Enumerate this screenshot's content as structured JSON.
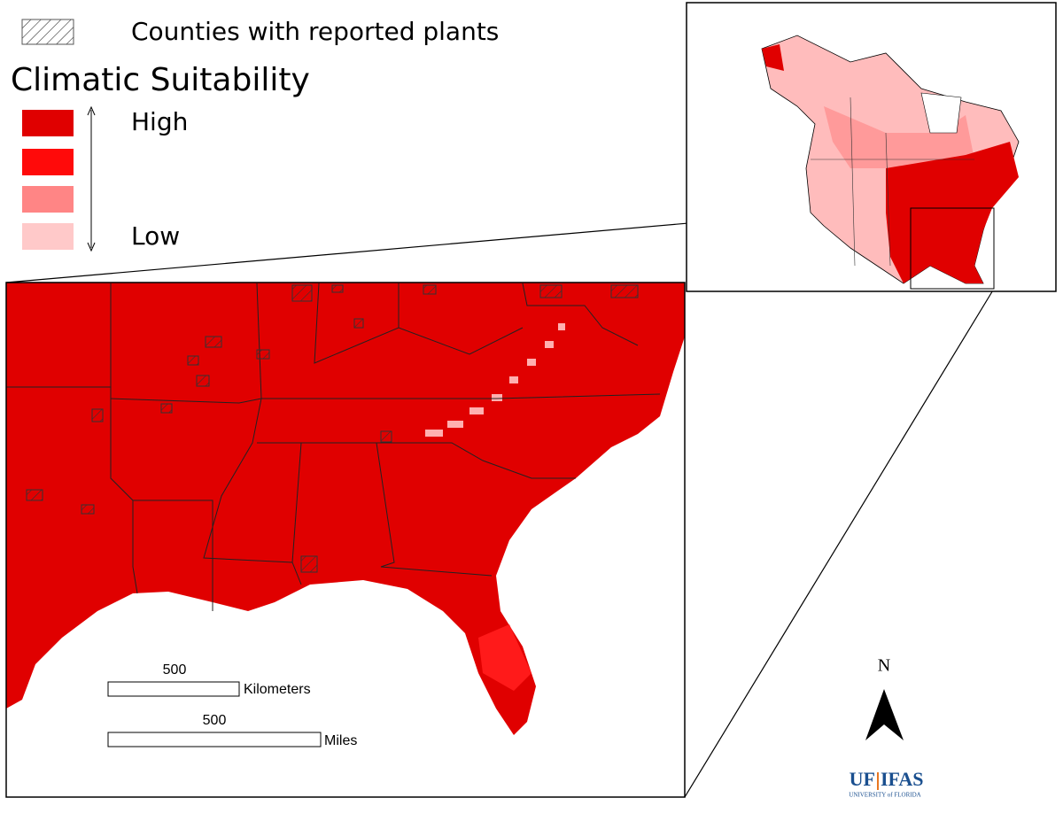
{
  "legend": {
    "hatch_label": "Counties with reported plants",
    "title": "Climatic Suitability",
    "high_label": "High",
    "low_label": "Low"
  },
  "scale_bars": [
    {
      "distance": 500,
      "unit": "Kilometers"
    },
    {
      "distance": 500,
      "unit": "Miles"
    }
  ],
  "north_arrow": {
    "label": "N"
  },
  "logo": {
    "left": "UF",
    "right": "IFAS",
    "subtitle": "UNIVERSITY of FLORIDA"
  }
}
